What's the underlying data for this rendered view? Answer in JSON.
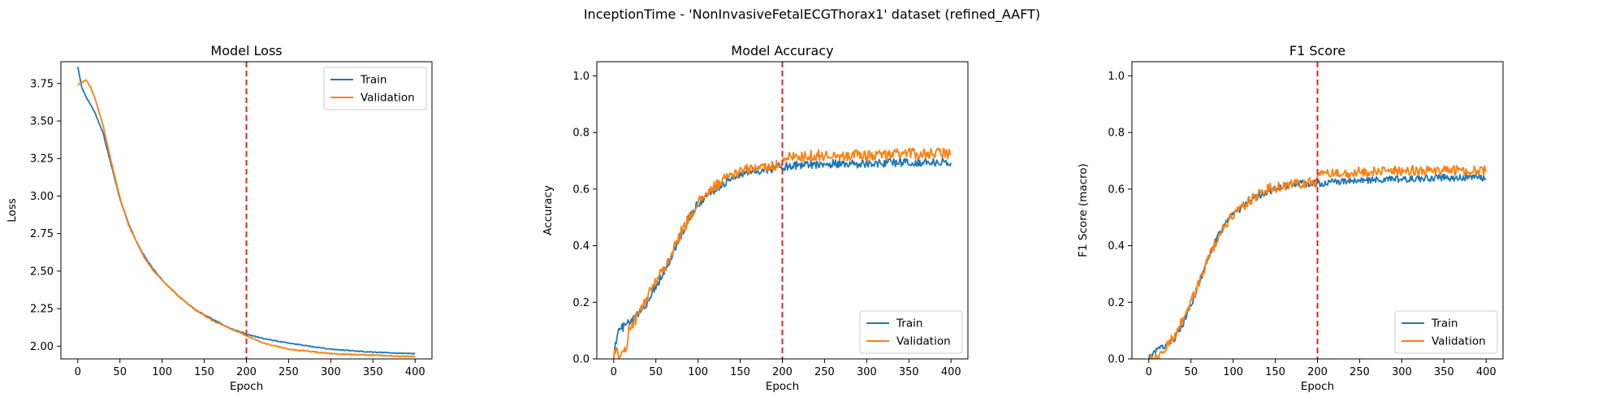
{
  "figure": {
    "suptitle": "InceptionTime - 'NonInvasiveFetalECGThorax1' dataset (refined_AAFT)",
    "colors": {
      "train": "#1f77b4",
      "validation": "#ff7f0e",
      "marker": "#d62728"
    }
  },
  "chart_data": [
    {
      "type": "line",
      "title": "Model Loss",
      "xlabel": "Epoch",
      "ylabel": "Loss",
      "xlim": [
        -20,
        420
      ],
      "ylim": [
        1.915,
        3.895
      ],
      "xticks": [
        0,
        50,
        100,
        150,
        200,
        250,
        300,
        350,
        400
      ],
      "yticks": [
        2.0,
        2.25,
        2.5,
        2.75,
        3.0,
        3.25,
        3.5,
        3.75
      ],
      "ytick_format": 2,
      "vline_x": 200,
      "legend": {
        "loc": "upper-right",
        "entries": [
          "Train",
          "Validation"
        ]
      },
      "series": [
        {
          "name": "Train",
          "x": [
            0,
            5,
            10,
            20,
            30,
            40,
            50,
            60,
            70,
            80,
            90,
            100,
            120,
            140,
            160,
            180,
            200,
            220,
            250,
            300,
            350,
            400
          ],
          "y": [
            3.86,
            3.72,
            3.66,
            3.56,
            3.42,
            3.2,
            2.98,
            2.82,
            2.69,
            2.59,
            2.51,
            2.44,
            2.33,
            2.24,
            2.18,
            2.12,
            2.08,
            2.05,
            2.02,
            1.98,
            1.96,
            1.95
          ],
          "noise": 0.003
        },
        {
          "name": "Validation",
          "x": [
            0,
            5,
            10,
            15,
            20,
            30,
            40,
            50,
            60,
            70,
            80,
            90,
            100,
            120,
            140,
            160,
            180,
            200,
            220,
            250,
            300,
            350,
            400
          ],
          "y": [
            3.74,
            3.76,
            3.77,
            3.73,
            3.66,
            3.47,
            3.22,
            2.99,
            2.81,
            2.69,
            2.58,
            2.5,
            2.44,
            2.33,
            2.24,
            2.17,
            2.12,
            2.07,
            2.02,
            1.98,
            1.95,
            1.94,
            1.93
          ],
          "noise": 0.004
        }
      ]
    },
    {
      "type": "line",
      "title": "Model Accuracy",
      "xlabel": "Epoch",
      "ylabel": "Accuracy",
      "xlim": [
        -20,
        420
      ],
      "ylim": [
        0.0,
        1.05
      ],
      "xticks": [
        0,
        50,
        100,
        150,
        200,
        250,
        300,
        350,
        400
      ],
      "yticks": [
        0.0,
        0.2,
        0.4,
        0.6,
        0.8,
        1.0
      ],
      "ytick_format": 1,
      "vline_x": 200,
      "legend": {
        "loc": "lower-right",
        "entries": [
          "Train",
          "Validation"
        ]
      },
      "series": [
        {
          "name": "Train",
          "x": [
            0,
            3,
            6,
            10,
            20,
            30,
            40,
            50,
            60,
            70,
            80,
            90,
            100,
            120,
            140,
            160,
            180,
            200,
            220,
            250,
            300,
            350,
            400
          ],
          "y": [
            0.02,
            0.06,
            0.1,
            0.11,
            0.13,
            0.16,
            0.2,
            0.26,
            0.31,
            0.37,
            0.44,
            0.5,
            0.55,
            0.6,
            0.64,
            0.66,
            0.67,
            0.68,
            0.685,
            0.69,
            0.69,
            0.695,
            0.695
          ],
          "noise": 0.015
        },
        {
          "name": "Validation",
          "x": [
            0,
            10,
            15,
            18,
            22,
            30,
            40,
            50,
            60,
            70,
            80,
            90,
            100,
            120,
            140,
            160,
            180,
            199,
            201,
            250,
            300,
            350,
            400
          ],
          "y": [
            0.02,
            0.02,
            0.03,
            0.11,
            0.12,
            0.16,
            0.22,
            0.28,
            0.32,
            0.38,
            0.45,
            0.5,
            0.55,
            0.61,
            0.65,
            0.67,
            0.68,
            0.685,
            0.71,
            0.72,
            0.72,
            0.725,
            0.725
          ],
          "noise": 0.02
        }
      ]
    },
    {
      "type": "line",
      "title": "F1 Score",
      "xlabel": "Epoch",
      "ylabel": "F1 Score (macro)",
      "xlim": [
        -20,
        420
      ],
      "ylim": [
        0.0,
        1.05
      ],
      "xticks": [
        0,
        50,
        100,
        150,
        200,
        250,
        300,
        350,
        400
      ],
      "yticks": [
        0.0,
        0.2,
        0.4,
        0.6,
        0.8,
        1.0
      ],
      "ytick_format": 1,
      "vline_x": 200,
      "legend": {
        "loc": "lower-right",
        "entries": [
          "Train",
          "Validation"
        ]
      },
      "series": [
        {
          "name": "Train",
          "x": [
            0,
            5,
            10,
            20,
            30,
            40,
            50,
            60,
            70,
            80,
            90,
            100,
            120,
            140,
            160,
            180,
            200,
            220,
            250,
            300,
            350,
            400
          ],
          "y": [
            0.0,
            0.02,
            0.03,
            0.05,
            0.07,
            0.12,
            0.19,
            0.27,
            0.35,
            0.42,
            0.47,
            0.51,
            0.56,
            0.59,
            0.61,
            0.62,
            0.62,
            0.625,
            0.63,
            0.635,
            0.64,
            0.64
          ],
          "noise": 0.012
        },
        {
          "name": "Validation",
          "x": [
            0,
            10,
            20,
            30,
            40,
            50,
            60,
            70,
            80,
            90,
            100,
            120,
            140,
            160,
            180,
            199,
            201,
            250,
            300,
            350,
            400
          ],
          "y": [
            0.0,
            0.0,
            0.04,
            0.08,
            0.14,
            0.2,
            0.27,
            0.35,
            0.42,
            0.47,
            0.51,
            0.56,
            0.6,
            0.61,
            0.62,
            0.625,
            0.65,
            0.66,
            0.665,
            0.665,
            0.665
          ],
          "noise": 0.018
        }
      ]
    }
  ]
}
